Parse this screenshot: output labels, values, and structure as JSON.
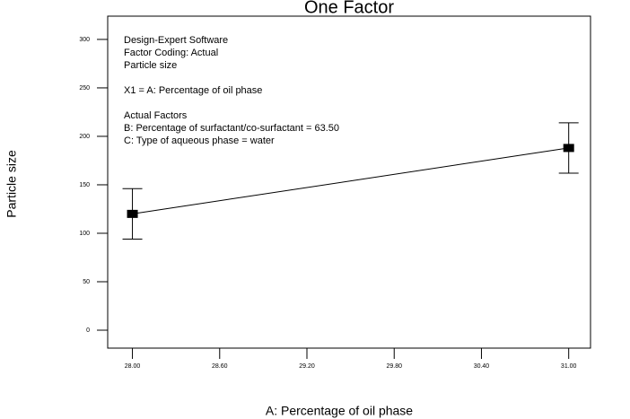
{
  "chart_data": {
    "type": "line",
    "title": "One Factor",
    "xlabel": "A: Percentage of oil phase",
    "ylabel": "Particle size",
    "annotations": [
      [
        "Design-Expert  Software",
        "Factor Coding: Actual",
        "Particle size"
      ],
      [
        "X1 = A: Percentage of oil phase"
      ],
      [
        "Actual Factors",
        "B: Percentage of surfactant/co-surfactant = 63.50",
        "C: Type of aqueous phase = water"
      ]
    ],
    "x": [
      28,
      31
    ],
    "series": [
      {
        "color": "#000000",
        "values": [
          120,
          188
        ],
        "errors": [
          26,
          26
        ]
      }
    ],
    "xlim": [
      27.83,
      31.15
    ],
    "ylim": [
      -18.5,
      324
    ],
    "xticks": [
      {
        "value": 28,
        "label": "28.00"
      },
      {
        "value": 28.6,
        "label": "28.60"
      },
      {
        "value": 29.2,
        "label": "29.20"
      },
      {
        "value": 29.8,
        "label": "29.80"
      },
      {
        "value": 30.4,
        "label": "30.40"
      },
      {
        "value": 31,
        "label": "31.00"
      }
    ],
    "yticks": [
      0,
      50,
      100,
      150,
      200,
      250,
      300
    ],
    "grid": false
  }
}
